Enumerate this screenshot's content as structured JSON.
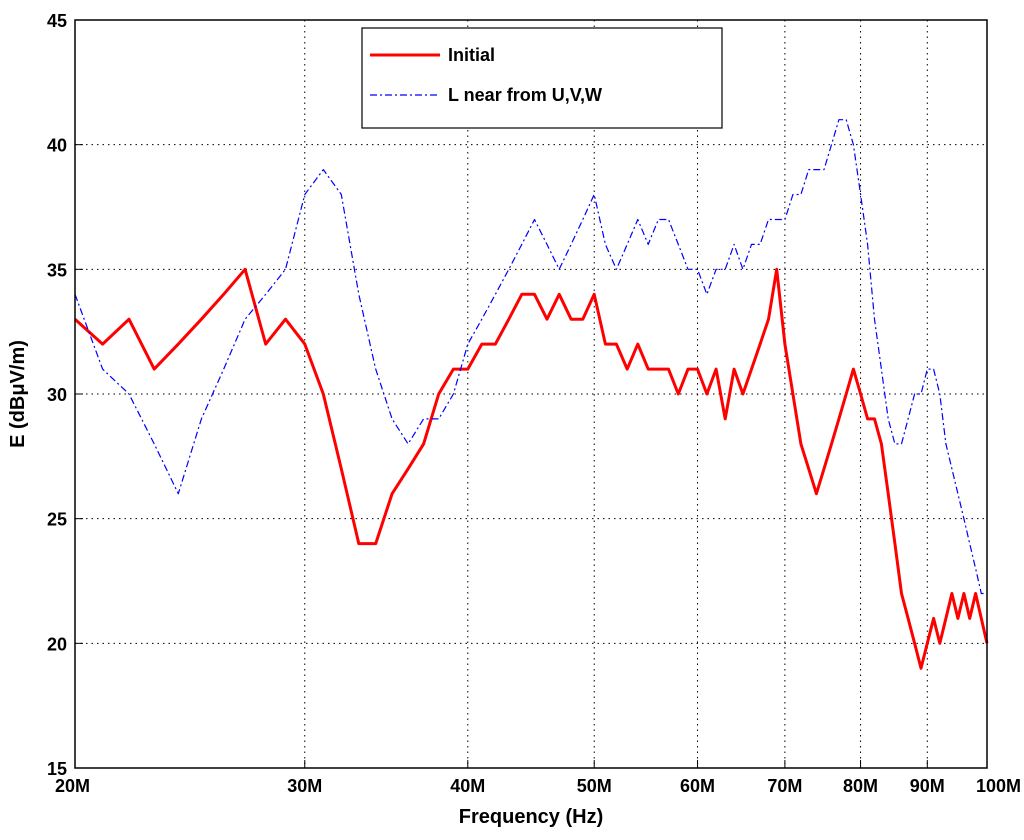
{
  "chart_data": {
    "type": "line",
    "xlabel": "Frequency (Hz)",
    "ylabel": "E (dBμV/m)",
    "xscale": "log",
    "grid": true,
    "legend": "upper center",
    "xlim": [
      20000000,
      100000000
    ],
    "ylim": [
      15,
      45
    ],
    "xticks": [
      {
        "value": 20000000,
        "label": "20M"
      },
      {
        "value": 30000000,
        "label": "30M"
      },
      {
        "value": 40000000,
        "label": "40M"
      },
      {
        "value": 50000000,
        "label": "50M"
      },
      {
        "value": 60000000,
        "label": "60M"
      },
      {
        "value": 70000000,
        "label": "70M"
      },
      {
        "value": 80000000,
        "label": "80M"
      },
      {
        "value": 90000000,
        "label": "90M"
      },
      {
        "value": 100000000,
        "label": "100M"
      }
    ],
    "yticks": [
      15,
      20,
      25,
      30,
      35,
      40,
      45
    ],
    "x": [
      20000000,
      21000000,
      22000000,
      23000000,
      24000000,
      25000000,
      26000000,
      27000000,
      28000000,
      29000000,
      30000000,
      31000000,
      32000000,
      33000000,
      34000000,
      35000000,
      36000000,
      37000000,
      38000000,
      39000000,
      40000000,
      41000000,
      42000000,
      43000000,
      44000000,
      45000000,
      46000000,
      47000000,
      48000000,
      49000000,
      50000000,
      51000000,
      52000000,
      53000000,
      54000000,
      55000000,
      56000000,
      57000000,
      58000000,
      59000000,
      60000000,
      61000000,
      62000000,
      63000000,
      64000000,
      65000000,
      66000000,
      67000000,
      68000000,
      69000000,
      70000000,
      71000000,
      72000000,
      73000000,
      74000000,
      75000000,
      76000000,
      77000000,
      78000000,
      79000000,
      80000000,
      81000000,
      82000000,
      83000000,
      84000000,
      85000000,
      86000000,
      87000000,
      88000000,
      89000000,
      90000000,
      91000000,
      92000000,
      93000000,
      94000000,
      95000000,
      96000000,
      97000000,
      98000000,
      99000000,
      100000000
    ],
    "series": [
      {
        "name": "Initial",
        "color": "#ff0000",
        "style": "solid",
        "values": [
          33,
          32,
          33,
          31,
          32,
          33,
          34,
          35,
          32,
          33,
          32,
          30,
          27,
          24,
          24,
          26,
          27,
          28,
          30,
          31,
          31,
          32,
          32,
          33,
          34,
          34,
          33,
          34,
          33,
          33,
          34,
          32,
          32,
          31,
          32,
          31,
          31,
          31,
          30,
          31,
          31,
          30,
          31,
          29,
          31,
          30,
          31,
          32,
          33,
          35,
          32,
          30,
          28,
          27,
          26,
          27,
          28,
          29,
          30,
          31,
          30,
          29,
          29,
          28,
          26,
          24,
          22,
          21,
          20,
          19,
          20,
          21,
          20,
          21,
          22,
          21,
          22,
          21,
          22,
          21,
          20
        ]
      },
      {
        "name": "L near from U,V,W",
        "color": "#0000ff",
        "style": "dashdot",
        "values": [
          34,
          31,
          30,
          28,
          26,
          29,
          31,
          33,
          34,
          35,
          38,
          39,
          38,
          34,
          31,
          29,
          28,
          29,
          29,
          30,
          32,
          33,
          34,
          35,
          36,
          37,
          36,
          35,
          36,
          37,
          38,
          36,
          35,
          36,
          37,
          36,
          37,
          37,
          36,
          35,
          35,
          34,
          35,
          35,
          36,
          35,
          36,
          36,
          37,
          37,
          37,
          38,
          38,
          39,
          39,
          39,
          40,
          41,
          41,
          40,
          38,
          36,
          33,
          31,
          29,
          28,
          28,
          29,
          30,
          30,
          31,
          31,
          30,
          28,
          27,
          26,
          25,
          24,
          23,
          22,
          22
        ]
      }
    ]
  }
}
